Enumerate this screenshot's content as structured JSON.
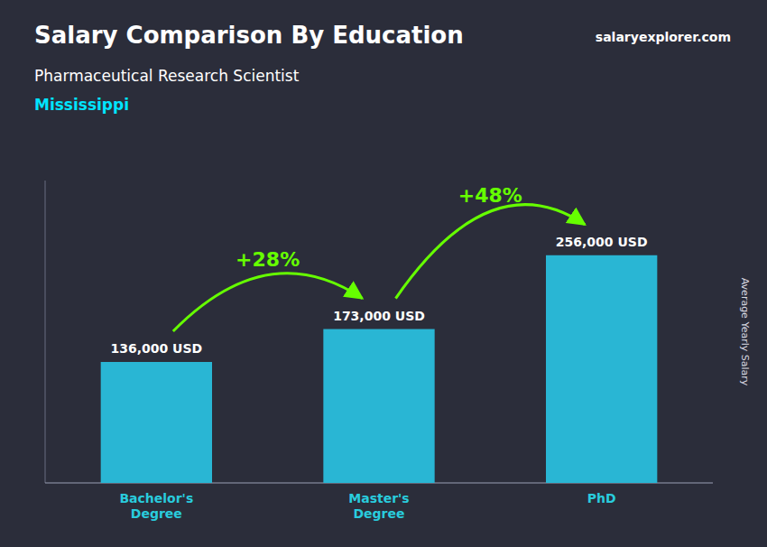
{
  "chart_data": {
    "type": "bar",
    "title": "Salary Comparison By Education",
    "subtitle": "Pharmaceutical Research Scientist",
    "annotations": [
      "Mississippi",
      "salaryexplorer.com",
      "+28%",
      "+48%"
    ],
    "ylabel": "Average Yearly Salary",
    "categories": [
      "Bachelor's\nDegree",
      "Master's\nDegree",
      "PhD"
    ],
    "values": [
      136000,
      173000,
      256000
    ],
    "value_labels": [
      "136,000 USD",
      "173,000 USD",
      "256,000 USD"
    ],
    "data_labels": true,
    "color": "#29b6d4",
    "ylim": [
      0,
      340000
    ],
    "tick_labels": "x",
    "grid": false
  }
}
